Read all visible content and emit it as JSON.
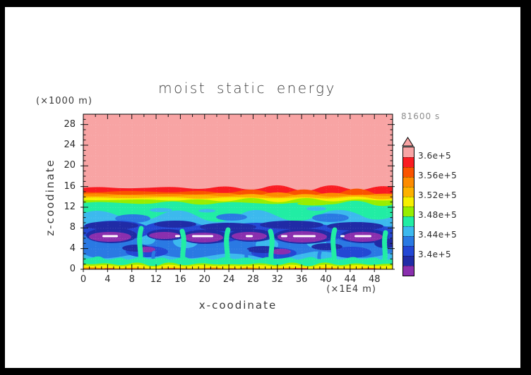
{
  "title": "moist static energy",
  "timestamp": "81600 s",
  "axes": {
    "x": {
      "label": "x-coodinate",
      "unit": "(×1E4 m)",
      "ticks": [
        "0",
        "4",
        "8",
        "12",
        "16",
        "20",
        "24",
        "28",
        "32",
        "36",
        "40",
        "44",
        "48"
      ],
      "range": [
        0,
        51
      ]
    },
    "y": {
      "label": "z-coodinate",
      "unit": "(×1000 m)",
      "ticks": [
        "0",
        "4",
        "8",
        "12",
        "16",
        "20",
        "24",
        "28"
      ],
      "range": [
        0,
        30
      ]
    }
  },
  "colorbar": {
    "labels": [
      "3.6e+5",
      "3.56e+5",
      "3.52e+5",
      "3.48e+5",
      "3.44e+5",
      "3.4e+5"
    ],
    "colors_top_to_bottom": [
      "#f8a4a4",
      "#f91c22",
      "#fa5300",
      "#fd8b00",
      "#fdb100",
      "#f6ef00",
      "#97ee00",
      "#21eda4",
      "#3cb9ee",
      "#2a79e3",
      "#2347d4",
      "#202ba6",
      "#8a2fae"
    ],
    "has_over_range_arrow_top": true
  },
  "chart_data": {
    "type": "heatmap",
    "title": "moist static energy",
    "xlabel": "x-coodinate (×1E4 m)",
    "ylabel": "z-coodinate (×1000 m)",
    "time_label": "81600 s",
    "x_range": [
      0,
      51
    ],
    "z_range": [
      0,
      30
    ],
    "grid": "faint dotted white grid over filled contours",
    "legend_position": "right colorbar",
    "contour_level_edges_top_to_bottom": [
      362000,
      360000,
      358000,
      356000,
      354000,
      352000,
      350000,
      348000,
      346000,
      344000,
      342000,
      340000,
      338000
    ],
    "labeled_levels": [
      360000,
      356000,
      352000,
      348000,
      344000,
      340000
    ],
    "white_marker_color": "#ffffff",
    "structure": {
      "upper_uniform_region": "pink band (>3.6e+5) filling z≈15.6 up to z=30",
      "stratified_bands": "thin horizontal red, orange, amber, yellow, chartreuse bands between z≈12.5 and z≈15.6",
      "mixed_layer": "teal band (≈3.46–3.48e+5) from z≈10 to z≈12.5 with wavy lower edge",
      "turbulent_layer": "convective blue/navy/purple plumes (≈3.38–3.46e+5) from surface to z≈10, purple minima cores near z≈5–7",
      "white_markers": "short horizontal white dashes inside purple cores near z≈6.5",
      "surface_strip": "thin chartreuse/yellow strip with orange-red spots at z≈0–0.8"
    }
  }
}
